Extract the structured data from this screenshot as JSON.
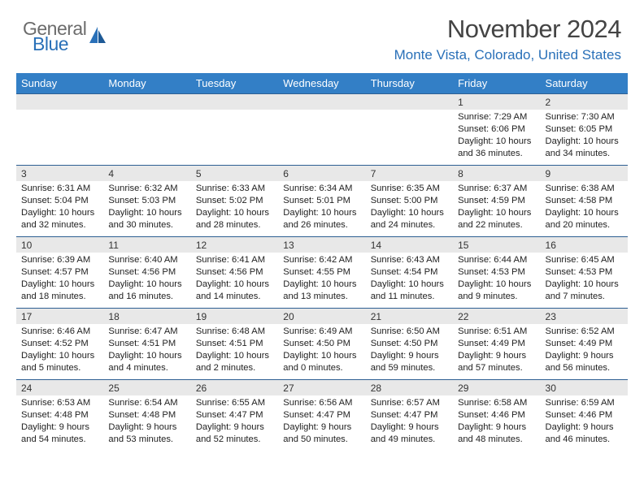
{
  "logo": {
    "top": "General",
    "bottom": "Blue"
  },
  "title": "November 2024",
  "location": "Monte Vista, Colorado, United States",
  "day_headers": [
    "Sunday",
    "Monday",
    "Tuesday",
    "Wednesday",
    "Thursday",
    "Friday",
    "Saturday"
  ],
  "colors": {
    "header_bg": "#337fc6",
    "header_text": "#ffffff",
    "row_sep": "#2d5f93",
    "daynum_bg": "#e8e8e8",
    "accent": "#2970b8",
    "logo_gray": "#6c6c6c"
  },
  "weeks": [
    [
      null,
      null,
      null,
      null,
      null,
      {
        "d": "1",
        "sr": "Sunrise: 7:29 AM",
        "ss": "Sunset: 6:06 PM",
        "dl1": "Daylight: 10 hours",
        "dl2": "and 36 minutes."
      },
      {
        "d": "2",
        "sr": "Sunrise: 7:30 AM",
        "ss": "Sunset: 6:05 PM",
        "dl1": "Daylight: 10 hours",
        "dl2": "and 34 minutes."
      }
    ],
    [
      {
        "d": "3",
        "sr": "Sunrise: 6:31 AM",
        "ss": "Sunset: 5:04 PM",
        "dl1": "Daylight: 10 hours",
        "dl2": "and 32 minutes."
      },
      {
        "d": "4",
        "sr": "Sunrise: 6:32 AM",
        "ss": "Sunset: 5:03 PM",
        "dl1": "Daylight: 10 hours",
        "dl2": "and 30 minutes."
      },
      {
        "d": "5",
        "sr": "Sunrise: 6:33 AM",
        "ss": "Sunset: 5:02 PM",
        "dl1": "Daylight: 10 hours",
        "dl2": "and 28 minutes."
      },
      {
        "d": "6",
        "sr": "Sunrise: 6:34 AM",
        "ss": "Sunset: 5:01 PM",
        "dl1": "Daylight: 10 hours",
        "dl2": "and 26 minutes."
      },
      {
        "d": "7",
        "sr": "Sunrise: 6:35 AM",
        "ss": "Sunset: 5:00 PM",
        "dl1": "Daylight: 10 hours",
        "dl2": "and 24 minutes."
      },
      {
        "d": "8",
        "sr": "Sunrise: 6:37 AM",
        "ss": "Sunset: 4:59 PM",
        "dl1": "Daylight: 10 hours",
        "dl2": "and 22 minutes."
      },
      {
        "d": "9",
        "sr": "Sunrise: 6:38 AM",
        "ss": "Sunset: 4:58 PM",
        "dl1": "Daylight: 10 hours",
        "dl2": "and 20 minutes."
      }
    ],
    [
      {
        "d": "10",
        "sr": "Sunrise: 6:39 AM",
        "ss": "Sunset: 4:57 PM",
        "dl1": "Daylight: 10 hours",
        "dl2": "and 18 minutes."
      },
      {
        "d": "11",
        "sr": "Sunrise: 6:40 AM",
        "ss": "Sunset: 4:56 PM",
        "dl1": "Daylight: 10 hours",
        "dl2": "and 16 minutes."
      },
      {
        "d": "12",
        "sr": "Sunrise: 6:41 AM",
        "ss": "Sunset: 4:56 PM",
        "dl1": "Daylight: 10 hours",
        "dl2": "and 14 minutes."
      },
      {
        "d": "13",
        "sr": "Sunrise: 6:42 AM",
        "ss": "Sunset: 4:55 PM",
        "dl1": "Daylight: 10 hours",
        "dl2": "and 13 minutes."
      },
      {
        "d": "14",
        "sr": "Sunrise: 6:43 AM",
        "ss": "Sunset: 4:54 PM",
        "dl1": "Daylight: 10 hours",
        "dl2": "and 11 minutes."
      },
      {
        "d": "15",
        "sr": "Sunrise: 6:44 AM",
        "ss": "Sunset: 4:53 PM",
        "dl1": "Daylight: 10 hours",
        "dl2": "and 9 minutes."
      },
      {
        "d": "16",
        "sr": "Sunrise: 6:45 AM",
        "ss": "Sunset: 4:53 PM",
        "dl1": "Daylight: 10 hours",
        "dl2": "and 7 minutes."
      }
    ],
    [
      {
        "d": "17",
        "sr": "Sunrise: 6:46 AM",
        "ss": "Sunset: 4:52 PM",
        "dl1": "Daylight: 10 hours",
        "dl2": "and 5 minutes."
      },
      {
        "d": "18",
        "sr": "Sunrise: 6:47 AM",
        "ss": "Sunset: 4:51 PM",
        "dl1": "Daylight: 10 hours",
        "dl2": "and 4 minutes."
      },
      {
        "d": "19",
        "sr": "Sunrise: 6:48 AM",
        "ss": "Sunset: 4:51 PM",
        "dl1": "Daylight: 10 hours",
        "dl2": "and 2 minutes."
      },
      {
        "d": "20",
        "sr": "Sunrise: 6:49 AM",
        "ss": "Sunset: 4:50 PM",
        "dl1": "Daylight: 10 hours",
        "dl2": "and 0 minutes."
      },
      {
        "d": "21",
        "sr": "Sunrise: 6:50 AM",
        "ss": "Sunset: 4:50 PM",
        "dl1": "Daylight: 9 hours",
        "dl2": "and 59 minutes."
      },
      {
        "d": "22",
        "sr": "Sunrise: 6:51 AM",
        "ss": "Sunset: 4:49 PM",
        "dl1": "Daylight: 9 hours",
        "dl2": "and 57 minutes."
      },
      {
        "d": "23",
        "sr": "Sunrise: 6:52 AM",
        "ss": "Sunset: 4:49 PM",
        "dl1": "Daylight: 9 hours",
        "dl2": "and 56 minutes."
      }
    ],
    [
      {
        "d": "24",
        "sr": "Sunrise: 6:53 AM",
        "ss": "Sunset: 4:48 PM",
        "dl1": "Daylight: 9 hours",
        "dl2": "and 54 minutes."
      },
      {
        "d": "25",
        "sr": "Sunrise: 6:54 AM",
        "ss": "Sunset: 4:48 PM",
        "dl1": "Daylight: 9 hours",
        "dl2": "and 53 minutes."
      },
      {
        "d": "26",
        "sr": "Sunrise: 6:55 AM",
        "ss": "Sunset: 4:47 PM",
        "dl1": "Daylight: 9 hours",
        "dl2": "and 52 minutes."
      },
      {
        "d": "27",
        "sr": "Sunrise: 6:56 AM",
        "ss": "Sunset: 4:47 PM",
        "dl1": "Daylight: 9 hours",
        "dl2": "and 50 minutes."
      },
      {
        "d": "28",
        "sr": "Sunrise: 6:57 AM",
        "ss": "Sunset: 4:47 PM",
        "dl1": "Daylight: 9 hours",
        "dl2": "and 49 minutes."
      },
      {
        "d": "29",
        "sr": "Sunrise: 6:58 AM",
        "ss": "Sunset: 4:46 PM",
        "dl1": "Daylight: 9 hours",
        "dl2": "and 48 minutes."
      },
      {
        "d": "30",
        "sr": "Sunrise: 6:59 AM",
        "ss": "Sunset: 4:46 PM",
        "dl1": "Daylight: 9 hours",
        "dl2": "and 46 minutes."
      }
    ]
  ]
}
